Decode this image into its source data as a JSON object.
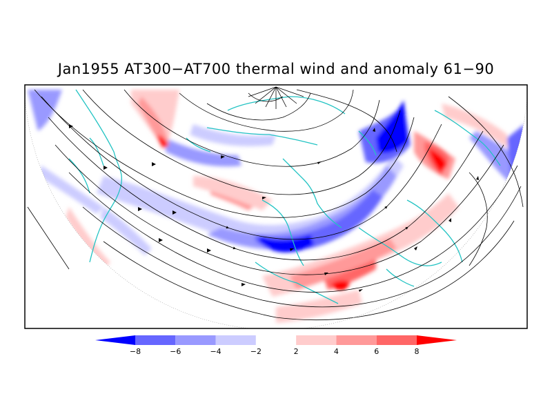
{
  "title": "Jan1955 AT300−AT700 thermal wind and anomaly 61−90",
  "colorbar": {
    "labels": [
      "−8",
      "−6",
      "−4",
      "−2",
      "2",
      "4",
      "6",
      "8"
    ],
    "colors": [
      "#0000ff",
      "#6666ff",
      "#9999ff",
      "#ccccff",
      "#ffffff",
      "#ffcccc",
      "#ff9999",
      "#ff6666",
      "#ff0000"
    ]
  },
  "map": {
    "projection": "polar stereographic (northern hemisphere, half view)",
    "coastline_color": "#22c3c3",
    "streamline_color": "#000000"
  }
}
